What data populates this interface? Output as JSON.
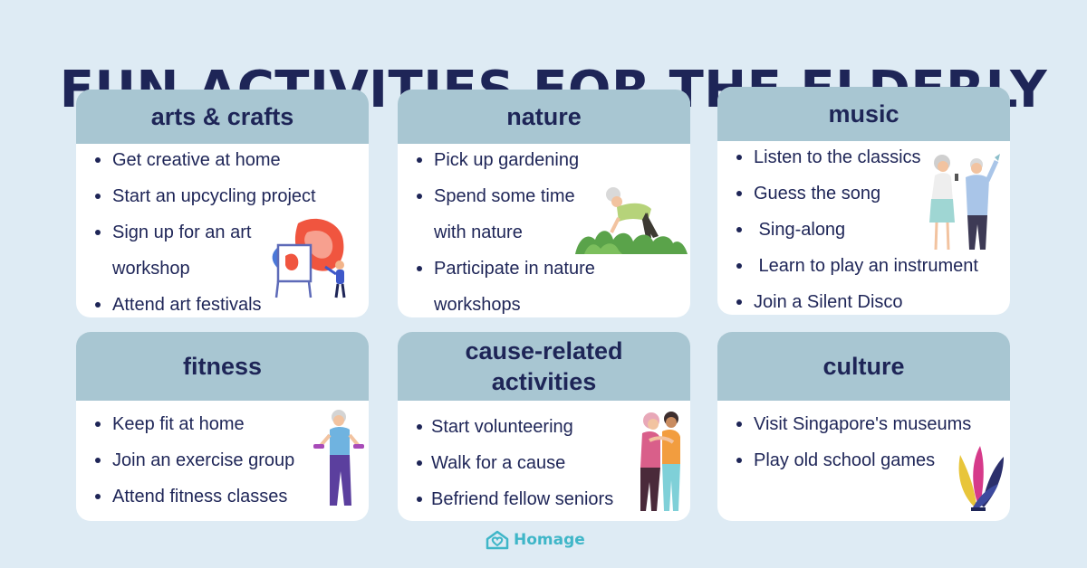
{
  "title": "FUN ACTIVITIES FOR THE ELDERLY",
  "cards": [
    {
      "heading": "arts & crafts",
      "items": [
        "Get creative at home",
        "Start an upcycling project",
        "Sign up for an art",
        "workshop",
        "Attend art festivals"
      ]
    },
    {
      "heading": "nature",
      "items": [
        "Pick up gardening",
        "Spend some time",
        "with nature",
        "Participate in nature",
        "workshops"
      ]
    },
    {
      "heading": "music",
      "items": [
        "Listen to the classics",
        "Guess the song",
        " Sing-along",
        " Learn to play an instrument",
        "Join a Silent Disco"
      ]
    },
    {
      "heading": "fitness",
      "items": [
        "Keep fit at home",
        "Join an exercise group",
        "Attend fitness classes"
      ]
    },
    {
      "heading": "cause-related activities",
      "items": [
        "Start volunteering",
        "Walk for a cause",
        "Befriend fellow seniors"
      ]
    },
    {
      "heading": "culture",
      "items": [
        "Visit Singapore's museums",
        "Play old school games"
      ]
    }
  ],
  "brand": {
    "name": "Homage"
  },
  "colors": {
    "background": "#deebf4",
    "header": "#a8c6d2",
    "text": "#1e2557",
    "brand": "#3fb6c8"
  },
  "icons": [
    "painter-easel-icon",
    "gardener-icon",
    "singing-couple-icon",
    "dumbbell-exercise-icon",
    "hugging-friends-icon",
    "feather-plant-icon",
    "homage-house-heart-icon"
  ]
}
